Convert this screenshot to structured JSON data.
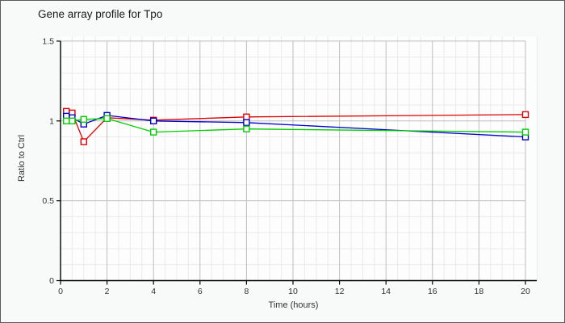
{
  "window": {
    "title": "Gene array profile for Tpo"
  },
  "colors": {
    "background": "#f8f9f9",
    "plot_background": "#fdfdfd",
    "window_border": "#5a5a5a",
    "axis": "#000000",
    "grid_major": "#bdbdbd",
    "grid_minor": "#eaeaea",
    "title_text": "#1a1a1a",
    "tick_text": "#333333",
    "marker_fill": "#ffffff"
  },
  "chart_data": {
    "type": "line",
    "title": "Gene array profile for Tpo",
    "xlabel": "Time (hours)",
    "ylabel": "Ratio to Ctrl",
    "xlim": [
      0,
      20.5
    ],
    "ylim": [
      0,
      1.53
    ],
    "xticks": [
      0,
      2,
      4,
      6,
      8,
      10,
      12,
      14,
      16,
      18,
      20
    ],
    "yticks": [
      0,
      0.5,
      1,
      1.5
    ],
    "ytick_labels": [
      "0",
      "0.5",
      "1",
      "1.5"
    ],
    "x_minor_step": 0.5,
    "y_minor_step": 0.1,
    "grid": true,
    "legend_position": "none",
    "marker": "open-square",
    "series": [
      {
        "name": "series-red",
        "color": "#dd0000",
        "x": [
          0.25,
          0.5,
          1,
          2,
          4,
          8,
          20
        ],
        "y": [
          1.06,
          1.05,
          0.87,
          1.02,
          1.005,
          1.025,
          1.04
        ]
      },
      {
        "name": "series-blue",
        "color": "#0000cc",
        "x": [
          0.25,
          0.5,
          1,
          2,
          4,
          8,
          20
        ],
        "y": [
          1.03,
          1.02,
          0.98,
          1.035,
          1.0,
          0.99,
          0.9
        ]
      },
      {
        "name": "series-green",
        "color": "#00cc00",
        "x": [
          0.25,
          0.5,
          1,
          2,
          4,
          8,
          20
        ],
        "y": [
          1.0,
          1.0,
          1.01,
          1.015,
          0.93,
          0.95,
          0.93
        ]
      }
    ]
  }
}
